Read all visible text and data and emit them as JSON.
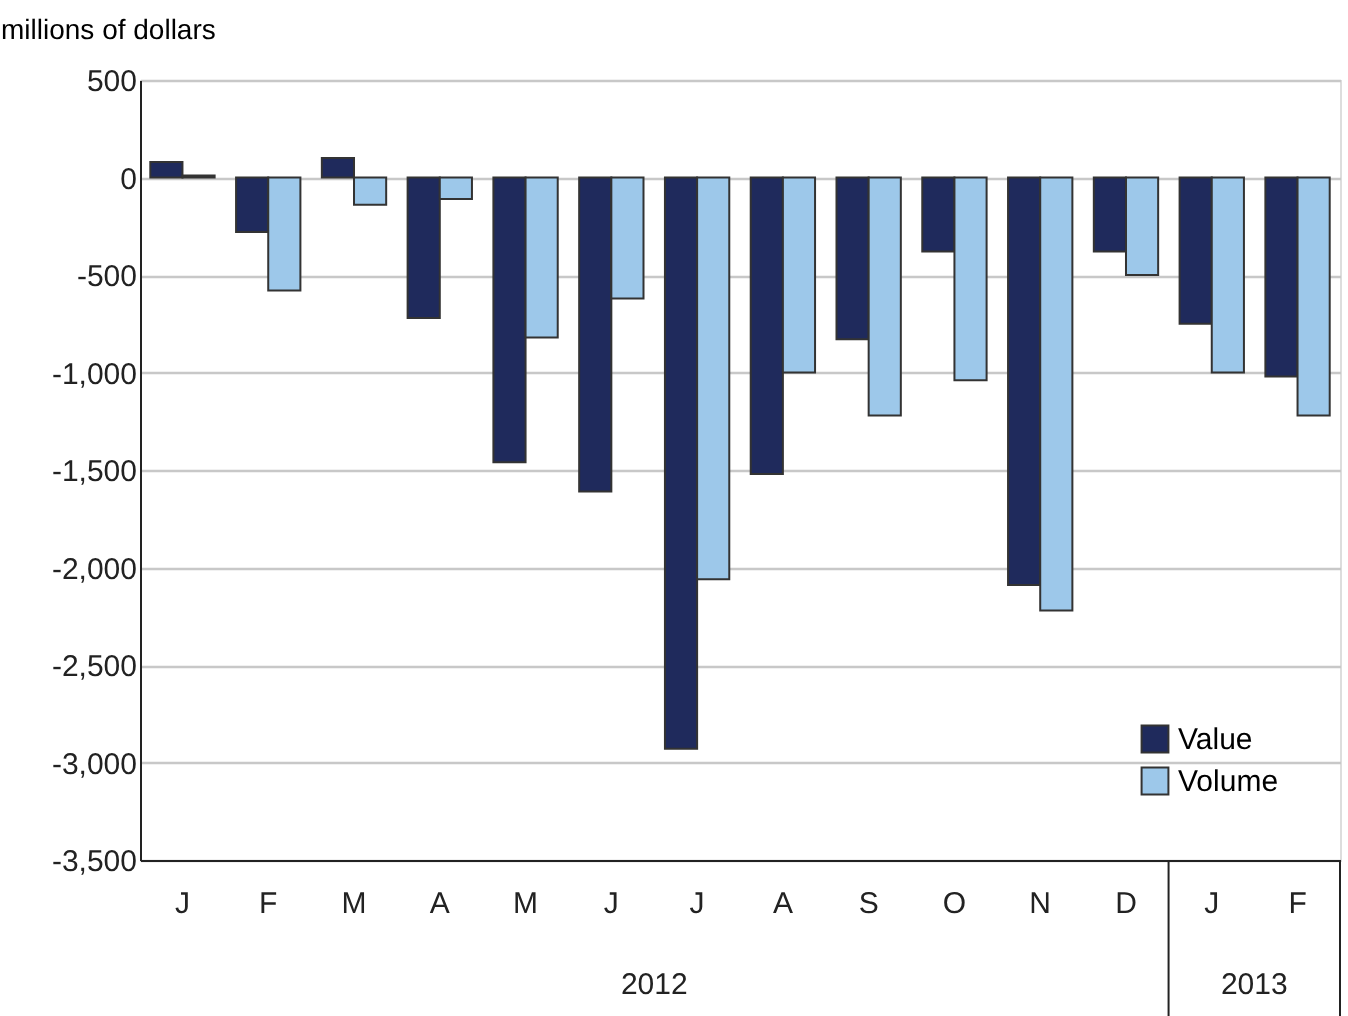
{
  "chart_data": {
    "type": "bar",
    "ylabel": "millions of dollars",
    "categories": [
      "J",
      "F",
      "M",
      "A",
      "M",
      "J",
      "J",
      "A",
      "S",
      "O",
      "N",
      "D",
      "J",
      "F"
    ],
    "annotations": [
      "2012",
      "2013"
    ],
    "series": [
      {
        "name": "Value",
        "color": "#1f2a5c",
        "values": [
          80,
          -280,
          100,
          -720,
          -1460,
          -1610,
          -2930,
          -1520,
          -830,
          -380,
          -2090,
          -380,
          -750,
          -1020
        ]
      },
      {
        "name": "Volume",
        "color": "#9dc8ea",
        "values": [
          10,
          -580,
          -140,
          -110,
          -820,
          -620,
          -2060,
          -1000,
          -1220,
          -1040,
          -2220,
          -500,
          -1000,
          -1220
        ]
      }
    ],
    "ylim": [
      -3500,
      500
    ],
    "yticks": [
      {
        "value": -3500,
        "label": "-3,500"
      },
      {
        "value": -3000,
        "label": "-3,000"
      },
      {
        "value": -2500,
        "label": "-2,500"
      },
      {
        "value": -2000,
        "label": "-2,000"
      },
      {
        "value": -1500,
        "label": "-1,500"
      },
      {
        "value": -1000,
        "label": "-1,000"
      },
      {
        "value": -500,
        "label": "-500"
      },
      0,
      500
    ],
    "grid": "y",
    "legend": "bottom right"
  }
}
